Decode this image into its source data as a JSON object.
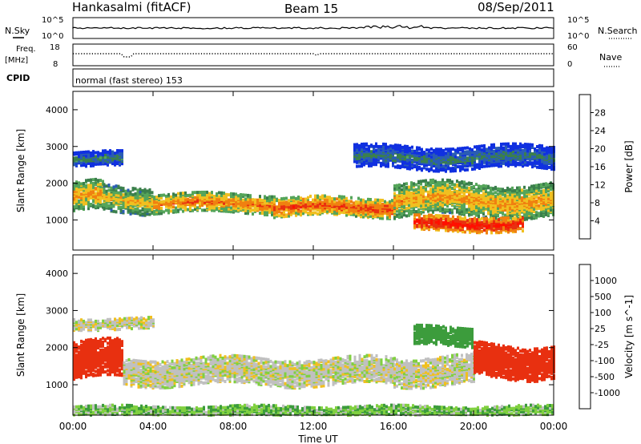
{
  "header": {
    "station": "Hankasalmi (fitACF)",
    "beam": "Beam 15",
    "date": "08/Sep/2011"
  },
  "top_panels": {
    "nsky_label": "N.Sky",
    "nsearch_label": "N.Search",
    "freq_label": "Freq.",
    "freq_unit": "[MHz]",
    "nave_label": "Nave",
    "cpid_label": "CPID",
    "cpid_text": "normal (fast stereo) 153",
    "nsky_ticks": [
      "10^5",
      "10^0"
    ],
    "nsearch_ticks": [
      "10^5",
      "10^0"
    ],
    "freq_ticks": [
      "18",
      "8"
    ],
    "nave_ticks": [
      "60",
      "0"
    ]
  },
  "chart_data": [
    {
      "type": "heatmap",
      "title": "",
      "xlabel": "Time UT",
      "ylabel": "Slant Range [km]",
      "x_ticks": [
        "00:00",
        "04:00",
        "08:00",
        "12:00",
        "16:00",
        "20:00",
        "00:00"
      ],
      "y_ticks": [
        "1000",
        "2000",
        "3000",
        "4000"
      ],
      "xlim_hours": [
        0,
        24
      ],
      "ylim_km": [
        180,
        4500
      ],
      "colorbar": {
        "label": "Power [dB]",
        "ticks": [
          "4",
          "8",
          "12",
          "16",
          "20",
          "24",
          "28"
        ],
        "range": [
          0,
          30
        ],
        "colors": [
          "#1030e0",
          "#2a5cb4",
          "#3b7f4c",
          "#55a55a",
          "#f0c020",
          "#f08010",
          "#e83010",
          "#ff1000"
        ]
      },
      "bands": [
        {
          "start_h": 0.0,
          "end_h": 1.5,
          "center_km": 1650,
          "width_km": 400,
          "level_db": 20
        },
        {
          "start_h": 1.5,
          "end_h": 4.0,
          "center_km": 1550,
          "width_km": 350,
          "level_db": 18
        },
        {
          "start_h": 4.0,
          "end_h": 10.0,
          "center_km": 1450,
          "width_km": 250,
          "level_db": 22
        },
        {
          "start_h": 10.0,
          "end_h": 16.0,
          "center_km": 1350,
          "width_km": 250,
          "level_db": 24
        },
        {
          "start_h": 16.0,
          "end_h": 24.0,
          "center_km": 1550,
          "width_km": 450,
          "level_db": 20
        },
        {
          "start_h": 17.0,
          "end_h": 22.5,
          "center_km": 900,
          "width_km": 200,
          "level_db": 28
        },
        {
          "start_h": 0.0,
          "end_h": 2.5,
          "center_km": 2650,
          "width_km": 200,
          "level_db": 10
        },
        {
          "start_h": 14.0,
          "end_h": 24.0,
          "center_km": 2700,
          "width_km": 300,
          "level_db": 9
        }
      ]
    },
    {
      "type": "heatmap",
      "title": "",
      "xlabel": "Time UT",
      "ylabel": "Slant Range [km]",
      "x_ticks": [
        "00:00",
        "04:00",
        "08:00",
        "12:00",
        "16:00",
        "20:00",
        "00:00"
      ],
      "y_ticks": [
        "1000",
        "2000",
        "3000",
        "4000"
      ],
      "xlim_hours": [
        0,
        24
      ],
      "ylim_km": [
        180,
        4500
      ],
      "colorbar": {
        "label": "Velocity [m s^-1]",
        "ticks": [
          "1000",
          "500",
          "100",
          "25",
          "-25",
          "-100",
          "-500",
          "-1000"
        ],
        "colors": [
          "#2040c0",
          "#3a6ea0",
          "#3c9c3c",
          "#80d040",
          "#c0c0c0",
          "#f0c020",
          "#f08010",
          "#e83010",
          "#ff0000"
        ]
      },
      "bands": [
        {
          "start_h": 0.0,
          "end_h": 2.5,
          "center_km": 1650,
          "width_km": 500,
          "velocity": -500
        },
        {
          "start_h": 2.5,
          "end_h": 16.0,
          "center_km": 1350,
          "width_km": 350,
          "velocity": 0
        },
        {
          "start_h": 16.0,
          "end_h": 20.0,
          "center_km": 1400,
          "width_km": 400,
          "velocity": 0
        },
        {
          "start_h": 20.0,
          "end_h": 24.0,
          "center_km": 1650,
          "width_km": 450,
          "velocity": -300
        },
        {
          "start_h": 0.0,
          "end_h": 4.0,
          "center_km": 2650,
          "width_km": 150,
          "velocity": 0
        },
        {
          "start_h": 17.0,
          "end_h": 20.0,
          "center_km": 2300,
          "width_km": 250,
          "velocity": 150
        },
        {
          "start_h": 0.0,
          "end_h": 24.0,
          "center_km": 280,
          "width_km": 150,
          "velocity": 50
        }
      ]
    }
  ]
}
